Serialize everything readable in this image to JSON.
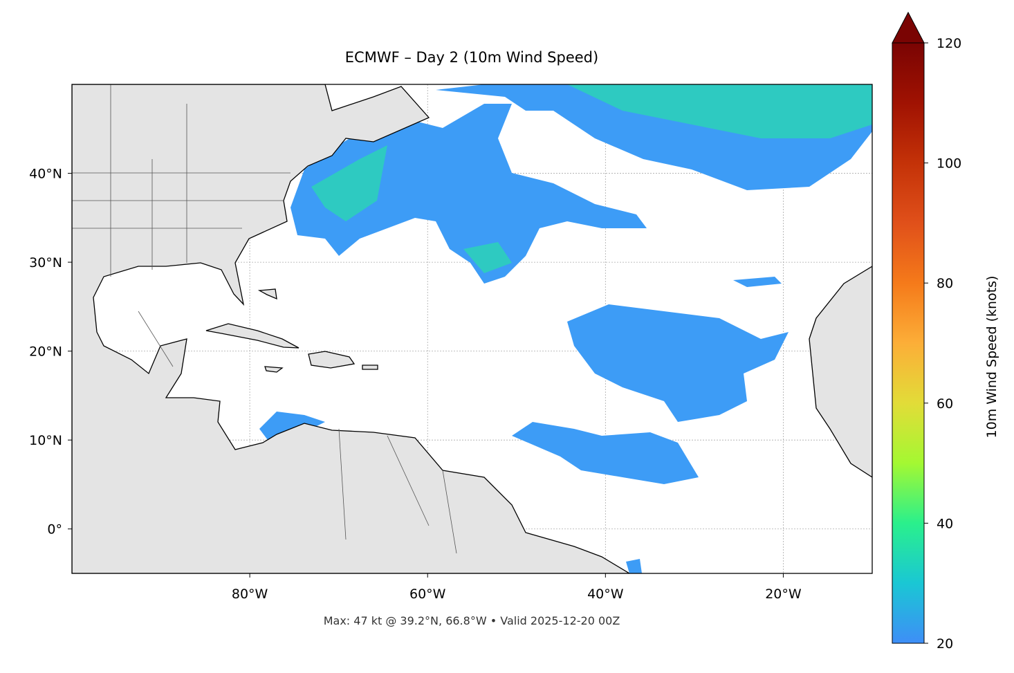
{
  "title": "ECMWF – Day 2 (10m Wind Speed)",
  "footer": "Max: 47 kt @ 39.2°N, 66.8°W • Valid 2025-12-20 00Z",
  "map": {
    "xlim": [
      -100,
      -10
    ],
    "ylim": [
      -5,
      50
    ],
    "xticks": [
      {
        "value": -80,
        "label": "80°W"
      },
      {
        "value": -60,
        "label": "60°W"
      },
      {
        "value": -40,
        "label": "40°W"
      },
      {
        "value": -20,
        "label": "20°W"
      }
    ],
    "yticks": [
      {
        "value": 0,
        "label": "0°"
      },
      {
        "value": 10,
        "label": "10°N"
      },
      {
        "value": 20,
        "label": "20°N"
      },
      {
        "value": 30,
        "label": "30°N"
      },
      {
        "value": 40,
        "label": "40°N"
      }
    ],
    "grid": true
  },
  "colorbar": {
    "label": "10m Wind Speed (knots)",
    "lim": [
      20,
      120
    ],
    "ticks": [
      20,
      40,
      60,
      80,
      100,
      120
    ],
    "colors": [
      "#3e8ef7",
      "#1ac7d4",
      "#2af08c",
      "#a4f832",
      "#e2dc38",
      "#fcae38",
      "#f57a1a",
      "#e0501a",
      "#c43208",
      "#a01202",
      "#7a0403"
    ],
    "extend": "max"
  }
}
